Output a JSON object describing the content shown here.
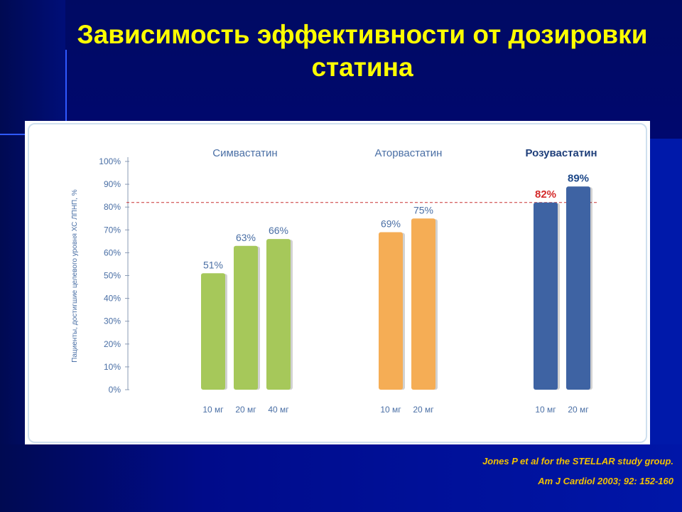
{
  "slide": {
    "title_line1": "Зависимость эффективности от дозировки",
    "title_line2": "статина",
    "citation_line1": "Jones P et al for the STELLAR study group.",
    "citation_line2": "Am J Cardiol 2003; 92: 152-160"
  },
  "chart_data": {
    "type": "bar",
    "ylabel": "Пациенты, достигшие целевого уровня ХС ЛПНП, %",
    "ylim": [
      0,
      100
    ],
    "yticks": [
      "0%",
      "10%",
      "20%",
      "30%",
      "40%",
      "50%",
      "60%",
      "70%",
      "80%",
      "90%",
      "100%"
    ],
    "reference_line": 82,
    "groups": [
      {
        "name": "Симвастатин",
        "color": "#a6c85a",
        "bars": [
          {
            "category": "10 мг",
            "value": 51,
            "label": "51%"
          },
          {
            "category": "20 мг",
            "value": 63,
            "label": "63%"
          },
          {
            "category": "40 мг",
            "value": 66,
            "label": "66%"
          }
        ]
      },
      {
        "name": "Аторвастатин",
        "color": "#f5ad55",
        "bars": [
          {
            "category": "10 мг",
            "value": 69,
            "label": "69%"
          },
          {
            "category": "20 мг",
            "value": 75,
            "label": "75%"
          }
        ]
      },
      {
        "name": "Розувастатин",
        "color": "#3e63a3",
        "bold": true,
        "bars": [
          {
            "category": "10 мг",
            "value": 82,
            "label": "82%",
            "label_color": "#d42a2a"
          },
          {
            "category": "20 мг",
            "value": 89,
            "label": "89%",
            "label_color": "#1f4a8a"
          }
        ]
      }
    ],
    "text_color": "#4a6fa5",
    "reference_line_color": "#c83232"
  }
}
